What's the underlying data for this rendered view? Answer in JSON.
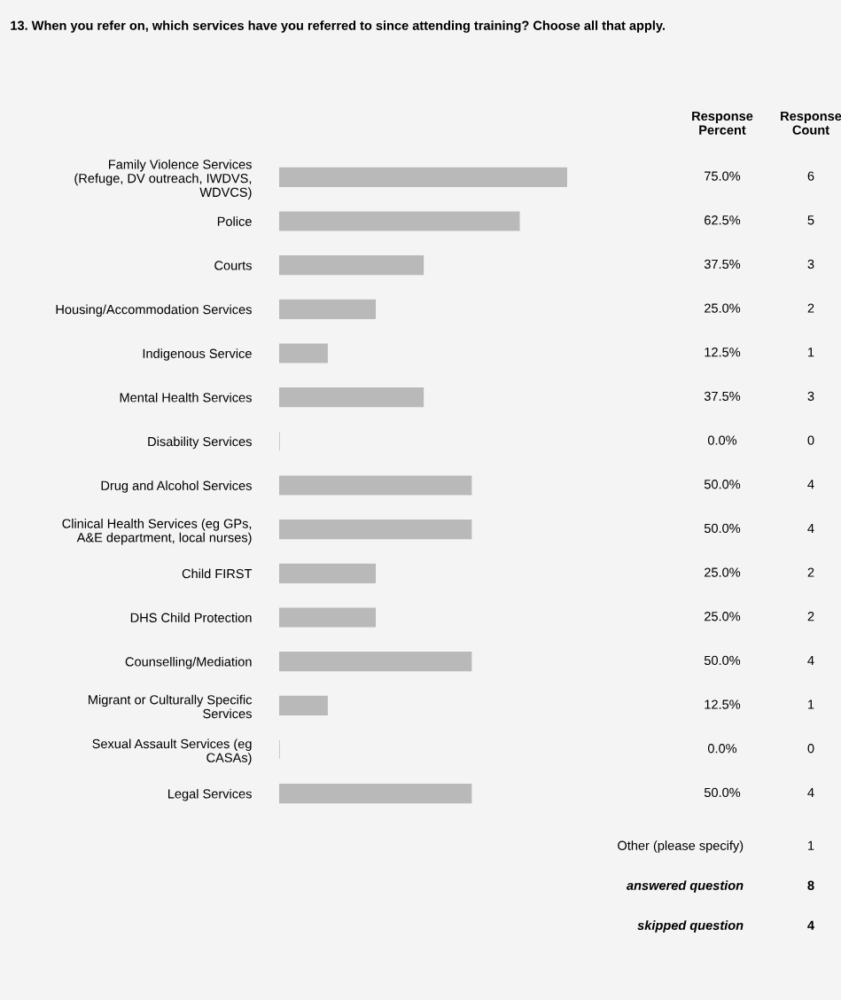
{
  "chart_data": {
    "type": "bar",
    "orientation": "horizontal",
    "title": "13. When you refer on, which services have you referred to since attending training? Choose all that apply.",
    "categories": [
      "Family Violence Services\n(Refuge, DV outreach, IWDVS,\nWDVCS)",
      "Police",
      "Courts",
      "Housing/Accommodation Services",
      "Indigenous Service",
      "Mental Health Services",
      "Disability Services",
      "Drug and Alcohol Services",
      "Clinical Health Services (eg GPs,\nA&E department, local nurses)",
      "Child FIRST",
      "DHS Child Protection",
      "Counselling/Mediation",
      "Migrant or Culturally Specific\nServices",
      "Sexual Assault Services (eg\nCASAs)",
      "Legal Services"
    ],
    "values": [
      75.0,
      62.5,
      37.5,
      25.0,
      12.5,
      37.5,
      0.0,
      50.0,
      50.0,
      25.0,
      25.0,
      50.0,
      12.5,
      0.0,
      50.0
    ],
    "value_labels": [
      "75.0%",
      "62.5%",
      "37.5%",
      "25.0%",
      "12.5%",
      "37.5%",
      "0.0%",
      "50.0%",
      "50.0%",
      "25.0%",
      "25.0%",
      "50.0%",
      "12.5%",
      "0.0%",
      "50.0%"
    ],
    "color": "#b9b9b9",
    "tick_labels": "y",
    "annotations": [
      "Response\nPercent",
      "Response\nCount",
      "6",
      "5",
      "3",
      "2",
      "1",
      "3",
      "0",
      "4",
      "4",
      "2",
      "2",
      "4",
      "1",
      "0",
      "4",
      "Other (please specify)",
      "1",
      "answered question",
      "8",
      "skipped question",
      "4"
    ]
  }
}
